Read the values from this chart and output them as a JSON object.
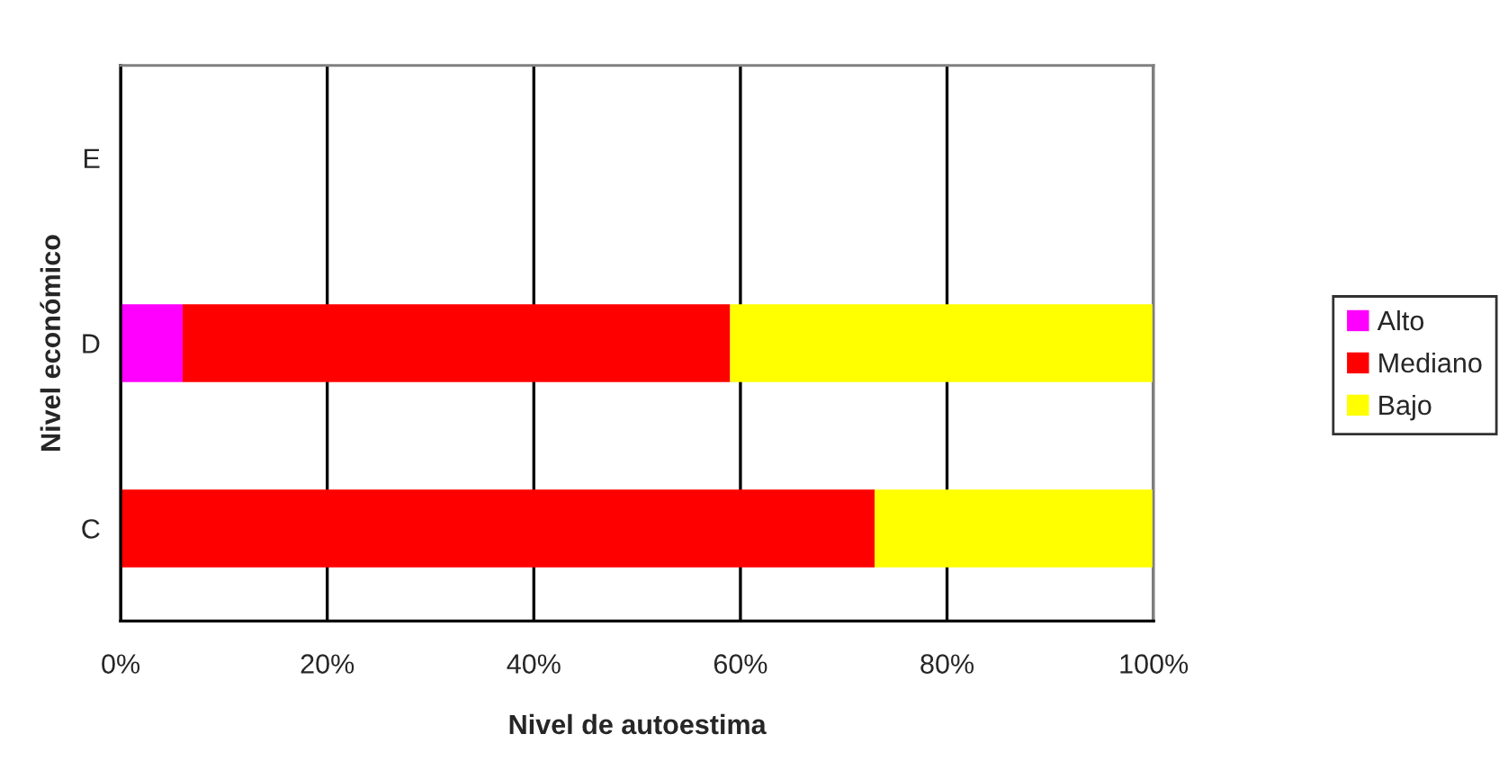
{
  "chart_data": {
    "type": "bar",
    "orientation": "horizontal",
    "stacked": true,
    "xlabel": "Nivel de autoestima",
    "ylabel": "Nivel económico",
    "categories": [
      "E",
      "D",
      "C"
    ],
    "series": [
      {
        "name": "Alto",
        "color": "#ff00ff",
        "values": [
          null,
          6,
          0
        ]
      },
      {
        "name": "Mediano",
        "color": "#ff0000",
        "values": [
          null,
          53,
          73
        ]
      },
      {
        "name": "Bajo",
        "color": "#ffff00",
        "values": [
          null,
          41,
          27
        ]
      }
    ],
    "xlim": [
      0,
      100
    ],
    "xticks": [
      {
        "value": 0,
        "label": "0%"
      },
      {
        "value": 20,
        "label": "20%"
      },
      {
        "value": 40,
        "label": "40%"
      },
      {
        "value": 60,
        "label": "60%"
      },
      {
        "value": 80,
        "label": "80%"
      },
      {
        "value": 100,
        "label": "100%"
      }
    ],
    "grid": "x",
    "legend": "right"
  }
}
